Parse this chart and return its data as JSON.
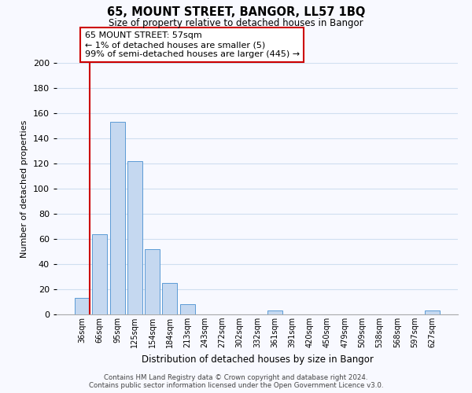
{
  "title": "65, MOUNT STREET, BANGOR, LL57 1BQ",
  "subtitle": "Size of property relative to detached houses in Bangor",
  "xlabel": "Distribution of detached houses by size in Bangor",
  "ylabel": "Number of detached properties",
  "bar_labels": [
    "36sqm",
    "66sqm",
    "95sqm",
    "125sqm",
    "154sqm",
    "184sqm",
    "213sqm",
    "243sqm",
    "272sqm",
    "302sqm",
    "332sqm",
    "361sqm",
    "391sqm",
    "420sqm",
    "450sqm",
    "479sqm",
    "509sqm",
    "538sqm",
    "568sqm",
    "597sqm",
    "627sqm"
  ],
  "bar_values": [
    13,
    64,
    153,
    122,
    52,
    25,
    8,
    0,
    0,
    0,
    0,
    3,
    0,
    0,
    0,
    0,
    0,
    0,
    0,
    0,
    3
  ],
  "bar_color": "#c5d8f0",
  "bar_edge_color": "#5b9bd5",
  "marker_color": "#cc0000",
  "ylim": [
    0,
    200
  ],
  "yticks": [
    0,
    20,
    40,
    60,
    80,
    100,
    120,
    140,
    160,
    180,
    200
  ],
  "annotation_title": "65 MOUNT STREET: 57sqm",
  "annotation_line1": "← 1% of detached houses are smaller (5)",
  "annotation_line2": "99% of semi-detached houses are larger (445) →",
  "footer_line1": "Contains HM Land Registry data © Crown copyright and database right 2024.",
  "footer_line2": "Contains public sector information licensed under the Open Government Licence v3.0.",
  "grid_color": "#d0dff0",
  "background_color": "#f8f9ff"
}
